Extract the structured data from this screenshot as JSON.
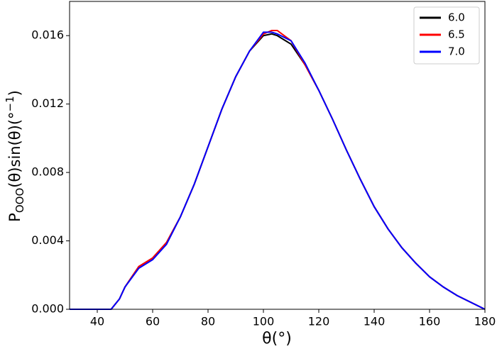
{
  "chart_data": {
    "type": "line",
    "xlabel": "θ(°)",
    "ylabel_parts": [
      "P",
      "OOO",
      "(θ)sin(θ)(°",
      "−1",
      ")"
    ],
    "x": [
      30,
      40,
      45,
      48,
      50,
      55,
      60,
      65,
      70,
      75,
      80,
      85,
      90,
      95,
      100,
      103,
      105,
      110,
      115,
      120,
      125,
      130,
      135,
      140,
      145,
      150,
      155,
      160,
      165,
      170,
      175,
      180
    ],
    "series": [
      {
        "name": "6.0",
        "color": "#000000",
        "values": [
          0,
          0,
          0,
          0.0006,
          0.0013,
          0.0025,
          0.003,
          0.0039,
          0.0054,
          0.0073,
          0.0095,
          0.0117,
          0.0136,
          0.0151,
          0.016,
          0.0161,
          0.016,
          0.0155,
          0.0143,
          0.0128,
          0.0111,
          0.0093,
          0.0076,
          0.006,
          0.0047,
          0.0036,
          0.0027,
          0.0019,
          0.0013,
          0.0008,
          0.0004,
          0
        ]
      },
      {
        "name": "6.5",
        "color": "#ff0000",
        "values": [
          0,
          0,
          0,
          0.0006,
          0.0013,
          0.0025,
          0.003,
          0.0039,
          0.0054,
          0.0073,
          0.0095,
          0.0117,
          0.0136,
          0.0151,
          0.0161,
          0.0163,
          0.0163,
          0.0157,
          0.0143,
          0.0128,
          0.0111,
          0.0093,
          0.0076,
          0.006,
          0.0047,
          0.0036,
          0.0027,
          0.0019,
          0.0013,
          0.0008,
          0.0004,
          0
        ]
      },
      {
        "name": "7.0",
        "color": "#0000ff",
        "values": [
          0,
          0,
          0,
          0.0006,
          0.0013,
          0.0024,
          0.0029,
          0.0038,
          0.0054,
          0.0073,
          0.0095,
          0.0117,
          0.0136,
          0.0151,
          0.0162,
          0.0162,
          0.0161,
          0.0157,
          0.0144,
          0.0128,
          0.0111,
          0.0093,
          0.0076,
          0.006,
          0.0047,
          0.0036,
          0.0027,
          0.0019,
          0.0013,
          0.0008,
          0.0004,
          0
        ]
      }
    ],
    "xlim": [
      30,
      180
    ],
    "xticks": [
      40,
      60,
      80,
      100,
      120,
      140,
      160,
      180
    ],
    "ylim": [
      0,
      0.018
    ],
    "yticks": [
      {
        "value": 0,
        "label": "0.000"
      },
      {
        "value": 0.004,
        "label": "0.004"
      },
      {
        "value": 0.008,
        "label": "0.008"
      },
      {
        "value": 0.012,
        "label": "0.012"
      },
      {
        "value": 0.016,
        "label": "0.016"
      }
    ],
    "legend": "upper right",
    "grid": false
  }
}
